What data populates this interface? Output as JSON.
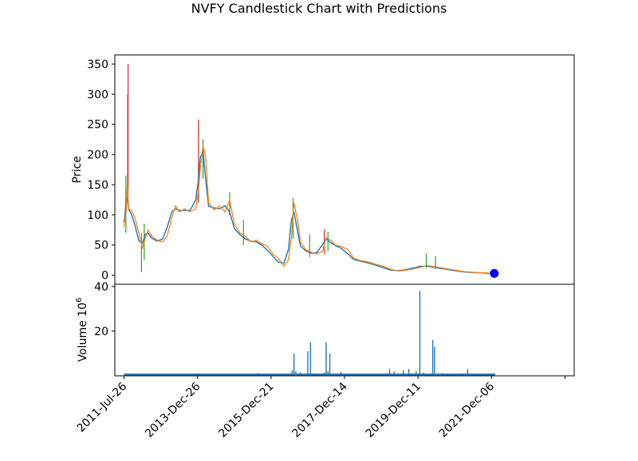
{
  "chart_data": {
    "type": "candlestick",
    "title": "NVFY Candlestick Chart with Predictions",
    "price_panel": {
      "ylabel": "Price",
      "ylim": [
        -15,
        365
      ],
      "yticks": [
        0,
        50,
        100,
        150,
        200,
        250,
        300,
        350
      ],
      "ytick_labels": [
        "0",
        "50",
        "100",
        "150",
        "200",
        "250",
        "300",
        "350"
      ],
      "colors": {
        "up": "#2ca02c",
        "down": "#d62728",
        "close_line": "#ff7f0e",
        "open_line": "#1f77b4",
        "prediction": "#0000ff"
      },
      "close_series": [
        {
          "t": 0.0,
          "v": 80
        },
        {
          "t": 0.05,
          "v": 95
        },
        {
          "t": 0.12,
          "v": 105
        },
        {
          "t": 0.18,
          "v": 150
        },
        {
          "t": 0.25,
          "v": 110
        },
        {
          "t": 0.4,
          "v": 108
        },
        {
          "t": 0.6,
          "v": 95
        },
        {
          "t": 0.8,
          "v": 70
        },
        {
          "t": 1.0,
          "v": 45
        },
        {
          "t": 1.15,
          "v": 60
        },
        {
          "t": 1.3,
          "v": 75
        },
        {
          "t": 1.5,
          "v": 65
        },
        {
          "t": 1.8,
          "v": 58
        },
        {
          "t": 2.1,
          "v": 55
        },
        {
          "t": 2.35,
          "v": 65
        },
        {
          "t": 2.6,
          "v": 95
        },
        {
          "t": 2.8,
          "v": 115
        },
        {
          "t": 3.0,
          "v": 105
        },
        {
          "t": 3.3,
          "v": 110
        },
        {
          "t": 3.6,
          "v": 105
        },
        {
          "t": 3.9,
          "v": 110
        },
        {
          "t": 4.05,
          "v": 140
        },
        {
          "t": 4.15,
          "v": 175
        },
        {
          "t": 4.3,
          "v": 215
        },
        {
          "t": 4.45,
          "v": 195
        },
        {
          "t": 4.6,
          "v": 120
        },
        {
          "t": 4.9,
          "v": 108
        },
        {
          "t": 5.2,
          "v": 115
        },
        {
          "t": 5.5,
          "v": 105
        },
        {
          "t": 5.75,
          "v": 125
        },
        {
          "t": 6.0,
          "v": 85
        },
        {
          "t": 6.3,
          "v": 70
        },
        {
          "t": 6.6,
          "v": 65
        },
        {
          "t": 6.9,
          "v": 55
        },
        {
          "t": 7.2,
          "v": 58
        },
        {
          "t": 7.5,
          "v": 52
        },
        {
          "t": 7.8,
          "v": 48
        },
        {
          "t": 8.1,
          "v": 35
        },
        {
          "t": 8.4,
          "v": 28
        },
        {
          "t": 8.7,
          "v": 15
        },
        {
          "t": 8.95,
          "v": 25
        },
        {
          "t": 9.1,
          "v": 60
        },
        {
          "t": 9.25,
          "v": 120
        },
        {
          "t": 9.45,
          "v": 90
        },
        {
          "t": 9.6,
          "v": 55
        },
        {
          "t": 9.9,
          "v": 42
        },
        {
          "t": 10.2,
          "v": 38
        },
        {
          "t": 10.5,
          "v": 35
        },
        {
          "t": 10.8,
          "v": 40
        },
        {
          "t": 11.0,
          "v": 62
        },
        {
          "t": 11.25,
          "v": 58
        },
        {
          "t": 11.5,
          "v": 50
        },
        {
          "t": 11.8,
          "v": 48
        },
        {
          "t": 12.2,
          "v": 42
        },
        {
          "t": 12.5,
          "v": 28
        },
        {
          "t": 12.9,
          "v": 24
        },
        {
          "t": 13.3,
          "v": 22
        },
        {
          "t": 13.7,
          "v": 18
        },
        {
          "t": 14.1,
          "v": 15
        },
        {
          "t": 14.5,
          "v": 10
        },
        {
          "t": 14.9,
          "v": 7
        },
        {
          "t": 15.3,
          "v": 8
        },
        {
          "t": 15.7,
          "v": 10
        },
        {
          "t": 16.1,
          "v": 13
        },
        {
          "t": 16.5,
          "v": 16
        },
        {
          "t": 16.9,
          "v": 14
        },
        {
          "t": 17.3,
          "v": 12
        },
        {
          "t": 17.7,
          "v": 10
        },
        {
          "t": 18.1,
          "v": 8
        },
        {
          "t": 18.5,
          "v": 6
        },
        {
          "t": 18.9,
          "v": 5
        },
        {
          "t": 19.3,
          "v": 4
        },
        {
          "t": 19.7,
          "v": 4
        },
        {
          "t": 20.0,
          "v": 3
        }
      ],
      "wicks": [
        {
          "t": 0.1,
          "low": 70,
          "high": 165,
          "dir": "up"
        },
        {
          "t": 0.22,
          "low": 130,
          "high": 350,
          "dir": "down"
        },
        {
          "t": 0.2,
          "low": 150,
          "high": 300,
          "dir": "down"
        },
        {
          "t": 0.95,
          "low": 5,
          "high": 70,
          "dir": "up"
        },
        {
          "t": 1.1,
          "low": 25,
          "high": 85,
          "dir": "up"
        },
        {
          "t": 4.05,
          "low": 120,
          "high": 258,
          "dir": "down"
        },
        {
          "t": 4.3,
          "low": 160,
          "high": 225,
          "dir": "up"
        },
        {
          "t": 5.75,
          "low": 100,
          "high": 138,
          "dir": "up"
        },
        {
          "t": 6.5,
          "low": 50,
          "high": 92,
          "dir": "up"
        },
        {
          "t": 9.2,
          "low": 60,
          "high": 128,
          "dir": "up"
        },
        {
          "t": 10.1,
          "low": 30,
          "high": 68,
          "dir": "up"
        },
        {
          "t": 10.9,
          "low": 35,
          "high": 76,
          "dir": "down"
        },
        {
          "t": 11.1,
          "low": 40,
          "high": 72,
          "dir": "up"
        },
        {
          "t": 16.45,
          "low": 12,
          "high": 36,
          "dir": "up"
        },
        {
          "t": 16.95,
          "low": 10,
          "high": 32,
          "dir": "up"
        }
      ],
      "prediction": {
        "t": 20.15,
        "v": 3
      }
    },
    "volume_panel": {
      "ylabel": "Volume  10^6",
      "ylabel_main": "Volume",
      "ylabel_exp_base": "10",
      "ylabel_exp": "6",
      "ylim": [
        0,
        41
      ],
      "yticks": [
        20,
        40
      ],
      "ytick_labels": [
        "20",
        "40"
      ],
      "color": "#1f77b4",
      "spikes": [
        {
          "t": 0.1,
          "v": 0.8
        },
        {
          "t": 3.9,
          "v": 0.6
        },
        {
          "t": 4.1,
          "v": 1.0
        },
        {
          "t": 5.2,
          "v": 0.5
        },
        {
          "t": 7.1,
          "v": 0.9
        },
        {
          "t": 7.3,
          "v": 1.2
        },
        {
          "t": 7.6,
          "v": 0.6
        },
        {
          "t": 8.4,
          "v": 0.5
        },
        {
          "t": 9.15,
          "v": 2.5
        },
        {
          "t": 9.25,
          "v": 10.0
        },
        {
          "t": 9.35,
          "v": 2.0
        },
        {
          "t": 9.6,
          "v": 1.5
        },
        {
          "t": 10.0,
          "v": 11.0
        },
        {
          "t": 10.15,
          "v": 15.0
        },
        {
          "t": 10.3,
          "v": 1.0
        },
        {
          "t": 10.9,
          "v": 1.5
        },
        {
          "t": 11.0,
          "v": 15.0
        },
        {
          "t": 11.1,
          "v": 2.0
        },
        {
          "t": 11.2,
          "v": 10.0
        },
        {
          "t": 11.35,
          "v": 1.0
        },
        {
          "t": 11.8,
          "v": 1.8
        },
        {
          "t": 12.5,
          "v": 0.8
        },
        {
          "t": 14.3,
          "v": 1.0
        },
        {
          "t": 14.45,
          "v": 3.0
        },
        {
          "t": 14.7,
          "v": 2.0
        },
        {
          "t": 15.2,
          "v": 2.5
        },
        {
          "t": 15.5,
          "v": 3.0
        },
        {
          "t": 15.9,
          "v": 2.0
        },
        {
          "t": 16.1,
          "v": 38.0
        },
        {
          "t": 16.3,
          "v": 1.5
        },
        {
          "t": 16.8,
          "v": 16.0
        },
        {
          "t": 16.9,
          "v": 13.0
        },
        {
          "t": 17.3,
          "v": 1.2
        },
        {
          "t": 18.4,
          "v": 1.0
        },
        {
          "t": 18.7,
          "v": 3.0
        },
        {
          "t": 19.2,
          "v": 0.8
        }
      ],
      "baseline": 1.0
    },
    "x_axis": {
      "tick_labels": [
        "2011-Jul-26",
        "2013-Dec-26",
        "2015-Dec-21",
        "2017-Dec-14",
        "2019-Dec-11",
        "2021-Dec-06",
        ""
      ],
      "tick_positions": [
        0,
        4,
        8,
        12,
        16,
        20,
        24
      ]
    },
    "grid": false,
    "legend": "none"
  }
}
